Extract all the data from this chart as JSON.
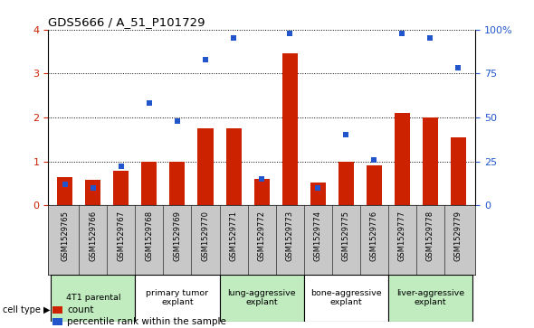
{
  "title": "GDS5666 / A_51_P101729",
  "samples": [
    "GSM1529765",
    "GSM1529766",
    "GSM1529767",
    "GSM1529768",
    "GSM1529769",
    "GSM1529770",
    "GSM1529771",
    "GSM1529772",
    "GSM1529773",
    "GSM1529774",
    "GSM1529775",
    "GSM1529776",
    "GSM1529777",
    "GSM1529778",
    "GSM1529779"
  ],
  "counts": [
    0.65,
    0.58,
    0.78,
    1.0,
    1.0,
    1.75,
    1.75,
    0.6,
    3.45,
    0.52,
    1.0,
    0.9,
    2.1,
    2.0,
    1.55
  ],
  "percentiles": [
    12,
    10,
    22,
    58,
    48,
    83,
    95,
    15,
    98,
    10,
    40,
    26,
    98,
    95,
    78
  ],
  "bar_color": "#cc2200",
  "dot_color": "#2255cc",
  "ylim_left": [
    0,
    4
  ],
  "ylim_right": [
    0,
    100
  ],
  "yticks_left": [
    0,
    1,
    2,
    3,
    4
  ],
  "yticks_right": [
    0,
    25,
    50,
    75,
    100
  ],
  "yticklabels_right": [
    "0",
    "25",
    "50",
    "75",
    "100%"
  ],
  "groups": [
    {
      "label": "4T1 parental",
      "start": 0,
      "end": 2,
      "color": "#c0ecc0"
    },
    {
      "label": "primary tumor\nexplant",
      "start": 3,
      "end": 5,
      "color": "#ffffff"
    },
    {
      "label": "lung-aggressive\nexplant",
      "start": 6,
      "end": 8,
      "color": "#c0ecc0"
    },
    {
      "label": "bone-aggressive\nexplant",
      "start": 9,
      "end": 11,
      "color": "#ffffff"
    },
    {
      "label": "liver-aggressive\nexplant",
      "start": 12,
      "end": 14,
      "color": "#c0ecc0"
    }
  ],
  "cell_type_label": "cell type",
  "legend_count_label": "count",
  "legend_percentile_label": "percentile rank within the sample",
  "xtick_bg_color": "#c8c8c8",
  "spine_color": "#000000"
}
